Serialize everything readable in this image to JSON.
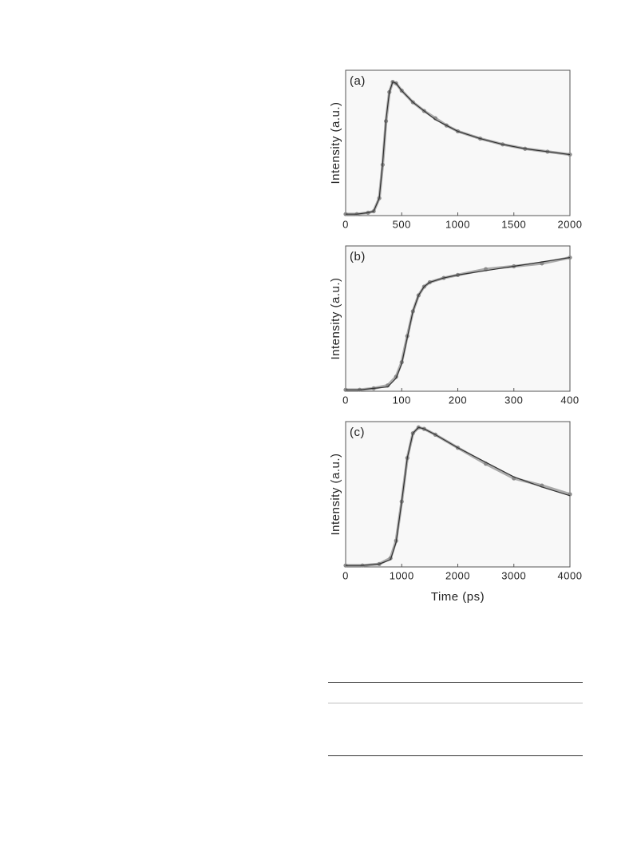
{
  "chart_data": [
    {
      "type": "line",
      "panel": "(a)",
      "ylabel": "Intensity (a.u.)",
      "xlim": [
        0,
        2000
      ],
      "xticks": [
        0,
        500,
        1000,
        1500,
        2000
      ],
      "ylim": [
        0,
        1
      ],
      "x": [
        0,
        100,
        200,
        250,
        300,
        330,
        360,
        390,
        420,
        450,
        500,
        600,
        700,
        800,
        900,
        1000,
        1200,
        1400,
        1600,
        1800,
        2000
      ],
      "series": [
        {
          "color": "#8a8a8a",
          "marker": "circle",
          "values": [
            0.01,
            0.01,
            0.02,
            0.03,
            0.12,
            0.35,
            0.65,
            0.85,
            0.92,
            0.91,
            0.86,
            0.78,
            0.72,
            0.67,
            0.62,
            0.58,
            0.53,
            0.49,
            0.46,
            0.44,
            0.42
          ]
        },
        {
          "color": "#333333",
          "marker": "none",
          "values": [
            0.01,
            0.01,
            0.02,
            0.03,
            0.12,
            0.36,
            0.66,
            0.85,
            0.92,
            0.91,
            0.86,
            0.78,
            0.72,
            0.66,
            0.62,
            0.58,
            0.53,
            0.49,
            0.46,
            0.44,
            0.42
          ]
        }
      ]
    },
    {
      "type": "line",
      "panel": "(b)",
      "ylabel": "Intensity (a.u.)",
      "xlim": [
        0,
        400
      ],
      "xticks": [
        0,
        100,
        200,
        300,
        400
      ],
      "ylim": [
        0,
        1
      ],
      "x": [
        0,
        25,
        50,
        75,
        90,
        100,
        110,
        120,
        130,
        140,
        150,
        175,
        200,
        250,
        300,
        350,
        400
      ],
      "series": [
        {
          "color": "#8a8a8a",
          "marker": "circle",
          "values": [
            0.01,
            0.01,
            0.02,
            0.04,
            0.1,
            0.2,
            0.38,
            0.55,
            0.66,
            0.72,
            0.75,
            0.78,
            0.8,
            0.84,
            0.86,
            0.88,
            0.92
          ]
        },
        {
          "color": "#333333",
          "marker": "none",
          "values": [
            0.01,
            0.01,
            0.02,
            0.03,
            0.09,
            0.19,
            0.37,
            0.55,
            0.66,
            0.72,
            0.75,
            0.78,
            0.8,
            0.83,
            0.86,
            0.89,
            0.92
          ]
        }
      ]
    },
    {
      "type": "line",
      "panel": "(c)",
      "ylabel": "Intensity (a.u.)",
      "xlabel": "Time (ps)",
      "xlim": [
        0,
        4000
      ],
      "xticks": [
        0,
        1000,
        2000,
        3000,
        4000
      ],
      "ylim": [
        0,
        1
      ],
      "x": [
        0,
        300,
        600,
        800,
        900,
        1000,
        1100,
        1200,
        1300,
        1400,
        1600,
        2000,
        2500,
        3000,
        3500,
        4000
      ],
      "series": [
        {
          "color": "#8a8a8a",
          "marker": "circle",
          "values": [
            0.01,
            0.01,
            0.02,
            0.06,
            0.18,
            0.45,
            0.75,
            0.92,
            0.96,
            0.95,
            0.91,
            0.82,
            0.71,
            0.61,
            0.56,
            0.5
          ]
        },
        {
          "color": "#333333",
          "marker": "none",
          "values": [
            0.01,
            0.01,
            0.02,
            0.05,
            0.17,
            0.45,
            0.75,
            0.92,
            0.96,
            0.95,
            0.91,
            0.82,
            0.72,
            0.62,
            0.55,
            0.49
          ]
        }
      ]
    }
  ]
}
